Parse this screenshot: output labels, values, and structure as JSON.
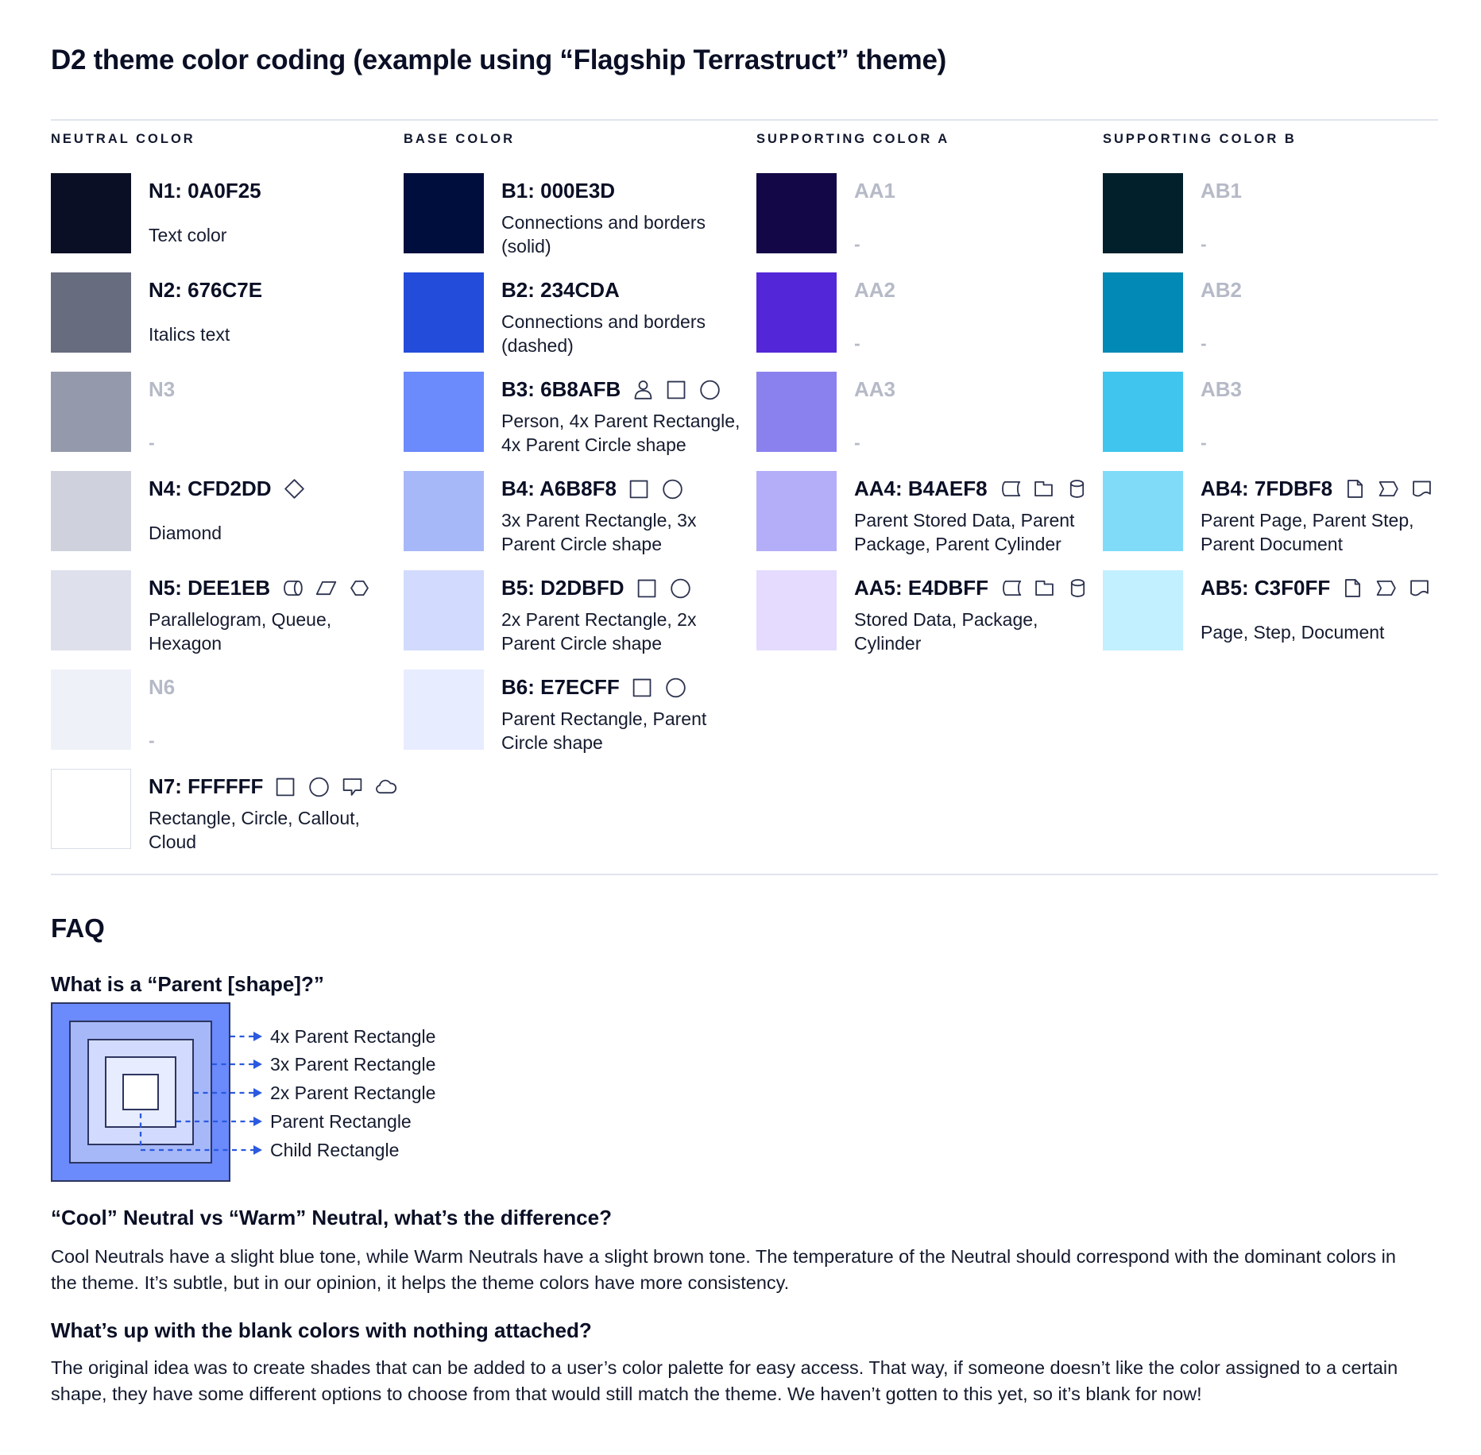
{
  "title": "D2 theme color coding (example using “Flagship Terrastruct” theme)",
  "palette": {
    "columns": [
      {
        "header": "NEUTRAL COLOR",
        "rows": [
          {
            "label": "N1: 0A0F25",
            "color": "#0A0F25",
            "active": true,
            "desc": "Text color",
            "icons": []
          },
          {
            "label": "N2: 676C7E",
            "color": "#676C7E",
            "active": true,
            "desc": "Italics text",
            "icons": []
          },
          {
            "label": "N3",
            "color": "#9499AB",
            "active": false,
            "desc": "-",
            "icons": []
          },
          {
            "label": "N4: CFD2DD",
            "color": "#CFD2DD",
            "active": true,
            "desc": "Diamond",
            "icons": [
              "diamond"
            ]
          },
          {
            "label": "N5: DEE1EB",
            "color": "#DEE1EB",
            "active": true,
            "desc": "Parallelogram, Queue,\nHexagon",
            "icons": [
              "queue",
              "parallelogram",
              "hexagon"
            ]
          },
          {
            "label": "N6",
            "color": "#EEF1F8",
            "active": false,
            "desc": "-",
            "icons": []
          },
          {
            "label": "N7: FFFFFF",
            "color": "#FFFFFF",
            "active": true,
            "desc": "Rectangle, Circle, Callout,\nCloud",
            "icons": [
              "rectangle",
              "circle",
              "callout",
              "cloud"
            ]
          }
        ]
      },
      {
        "header": "BASE COLOR",
        "rows": [
          {
            "label": "B1: 000E3D",
            "color": "#000E3D",
            "active": true,
            "desc": "Connections and borders\n(solid)",
            "icons": []
          },
          {
            "label": "B2: 234CDA",
            "color": "#234CDA",
            "active": true,
            "desc": "Connections and borders\n(dashed)",
            "icons": []
          },
          {
            "label": "B3: 6B8AFB",
            "color": "#6B8AFB",
            "active": true,
            "desc": "Person, 4x Parent Rectangle,\n4x Parent Circle shape",
            "icons": [
              "person",
              "rectangle",
              "circle"
            ]
          },
          {
            "label": "B4: A6B8F8",
            "color": "#A6B8F8",
            "active": true,
            "desc": "3x Parent Rectangle, 3x\nParent Circle shape",
            "icons": [
              "rectangle",
              "circle"
            ]
          },
          {
            "label": "B5: D2DBFD",
            "color": "#D2DBFD",
            "active": true,
            "desc": "2x Parent Rectangle, 2x\nParent Circle shape",
            "icons": [
              "rectangle",
              "circle"
            ]
          },
          {
            "label": "B6: E7ECFF",
            "color": "#E7ECFF",
            "active": true,
            "desc": "Parent Rectangle, Parent\nCircle shape",
            "icons": [
              "rectangle",
              "circle"
            ]
          }
        ]
      },
      {
        "header": "SUPPORTING COLOR A",
        "rows": [
          {
            "label": "AA1",
            "color": "#130747",
            "active": false,
            "desc": "-",
            "icons": []
          },
          {
            "label": "AA2",
            "color": "#5327D8",
            "active": false,
            "desc": "-",
            "icons": []
          },
          {
            "label": "AA3",
            "color": "#8B81EE",
            "active": false,
            "desc": "-",
            "icons": []
          },
          {
            "label": "AA4: B4AEF8",
            "color": "#B4AEF8",
            "active": true,
            "desc": "Parent Stored Data, Parent\nPackage,  Parent Cylinder",
            "icons": [
              "stored-data",
              "package",
              "cylinder"
            ]
          },
          {
            "label": "AA5: E4DBFF",
            "color": "#E4DBFF",
            "active": true,
            "desc": "Stored Data, Package,\nCylinder",
            "icons": [
              "stored-data",
              "package",
              "cylinder"
            ]
          }
        ]
      },
      {
        "header": "SUPPORTING COLOR B",
        "rows": [
          {
            "label": "AB1",
            "color": "#02202B",
            "active": false,
            "desc": "-",
            "icons": []
          },
          {
            "label": "AB2",
            "color": "#0289B5",
            "active": false,
            "desc": "-",
            "icons": []
          },
          {
            "label": "AB3",
            "color": "#3FC5EE",
            "active": false,
            "desc": "-",
            "icons": []
          },
          {
            "label": "AB4: 7FDBF8",
            "color": "#7FDBF8",
            "active": true,
            "desc": "Parent Page, Parent Step,\nParent Document",
            "icons": [
              "page",
              "step",
              "document"
            ]
          },
          {
            "label": "AB5: C3F0FF",
            "color": "#C3F0FF",
            "active": true,
            "desc": "Page, Step, Document",
            "icons": [
              "page",
              "step",
              "document"
            ]
          }
        ]
      }
    ]
  },
  "faq": {
    "heading": "FAQ",
    "q_parent": "What is a “Parent [shape]?”",
    "diagram": {
      "arrow_color": "#2B59E0",
      "rects": [
        {
          "label": "4x Parent Rectangle",
          "fill": "#6B8AFB"
        },
        {
          "label": "3x Parent Rectangle",
          "fill": "#A6B8F8"
        },
        {
          "label": "2x Parent Rectangle",
          "fill": "#D2DBFD"
        },
        {
          "label": "Parent Rectangle",
          "fill": "#E7ECFF"
        },
        {
          "label": "Child Rectangle",
          "fill": "#FFFFFF"
        }
      ]
    },
    "q_cool_warm": "“Cool” Neutral vs “Warm” Neutral, what’s the difference?",
    "a_cool_warm": "Cool Neutrals have a slight blue tone, while Warm Neutrals have a slight brown tone. The temperature of the Neutral should correspond with the dominant colors in the theme. It’s subtle, but in our opinion, it helps the theme colors have more consistency.",
    "q_blank": "What’s up with the blank colors with nothing attached?",
    "a_blank": "The original idea was to create shades that can be added to a user’s color palette for easy access. That way, if someone doesn’t like the color assigned to a certain shape, they have some different options to choose from that would still match the theme. We haven’t gotten to this yet, so it’s blank for now!"
  },
  "colors": {
    "text": "#0A0F25",
    "muted_label": "#B6BAC7",
    "rule": "#E1E4EE",
    "icon_stroke": "#2E3450",
    "diagram_border": "#2D3560",
    "arrow": "#2B59E0"
  }
}
